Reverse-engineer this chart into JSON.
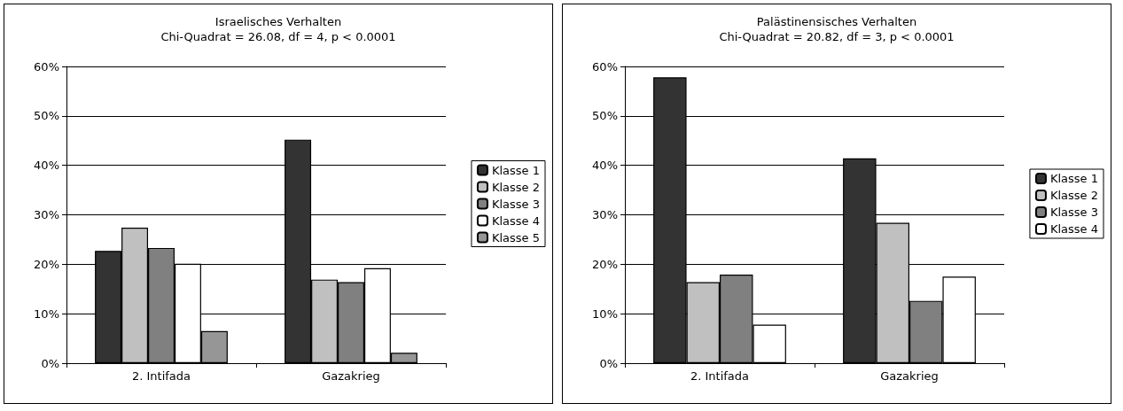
{
  "chart_data": [
    {
      "type": "bar",
      "title": "Israelisches Verhalten",
      "subtitle": "Chi-Quadrat = 26.08, df = 4, p < 0.0001",
      "categories": [
        "2. Intifada",
        "Gazakrieg"
      ],
      "series": [
        {
          "name": "Klasse 1",
          "color": "#333333",
          "values": [
            22.7,
            45.2
          ]
        },
        {
          "name": "Klasse 2",
          "color": "#c0c0c0",
          "values": [
            27.4,
            16.9
          ]
        },
        {
          "name": "Klasse 3",
          "color": "#808080",
          "values": [
            23.3,
            16.4
          ]
        },
        {
          "name": "Klasse 4",
          "color": "#ffffff",
          "values": [
            20.1,
            19.2
          ]
        },
        {
          "name": "Klasse 5",
          "color": "#969696",
          "values": [
            6.5,
            2.1
          ]
        }
      ],
      "ylim": [
        0,
        60
      ],
      "yticks": [
        {
          "value": 0,
          "label": "0%"
        },
        {
          "value": 10,
          "label": "10%"
        },
        {
          "value": 20,
          "label": "20%"
        },
        {
          "value": 30,
          "label": "30%"
        },
        {
          "value": 40,
          "label": "40%"
        },
        {
          "value": 50,
          "label": "50%"
        },
        {
          "value": 60,
          "label": "60%"
        }
      ],
      "grid": "y",
      "legend": "right"
    },
    {
      "type": "bar",
      "title": "Palästinensisches Verhalten",
      "subtitle": "Chi-Quadrat = 20.82, df = 3, p < 0.0001",
      "categories": [
        "2. Intifada",
        "Gazakrieg"
      ],
      "series": [
        {
          "name": "Klasse 1",
          "color": "#333333",
          "values": [
            57.8,
            41.4
          ]
        },
        {
          "name": "Klasse 2",
          "color": "#c0c0c0",
          "values": [
            16.4,
            28.4
          ]
        },
        {
          "name": "Klasse 3",
          "color": "#808080",
          "values": [
            17.9,
            12.6
          ]
        },
        {
          "name": "Klasse 4",
          "color": "#ffffff",
          "values": [
            7.8,
            17.5
          ]
        }
      ],
      "ylim": [
        0,
        60
      ],
      "yticks": [
        {
          "value": 0,
          "label": "0%"
        },
        {
          "value": 10,
          "label": "10%"
        },
        {
          "value": 20,
          "label": "20%"
        },
        {
          "value": 30,
          "label": "30%"
        },
        {
          "value": 40,
          "label": "40%"
        },
        {
          "value": 50,
          "label": "50%"
        },
        {
          "value": 60,
          "label": "60%"
        }
      ],
      "grid": "y",
      "legend": "right"
    }
  ]
}
